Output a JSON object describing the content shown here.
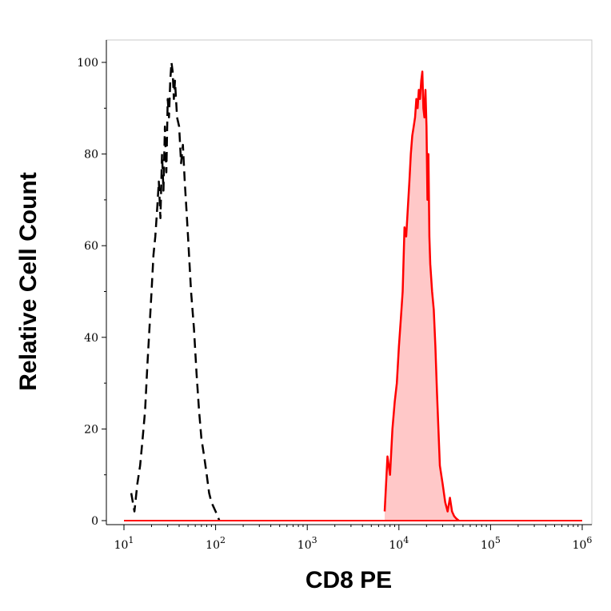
{
  "chart_data": {
    "type": "area",
    "xlabel": "CD8 PE",
    "ylabel": "Relative Cell Count",
    "x_scale": "log",
    "xlim": [
      10,
      1000000
    ],
    "ylim": [
      0,
      100
    ],
    "yticks": [
      {
        "value": 0,
        "label": "0"
      },
      {
        "value": 20,
        "label": "20"
      },
      {
        "value": 40,
        "label": "40"
      },
      {
        "value": 60,
        "label": "60"
      },
      {
        "value": 80,
        "label": "80"
      },
      {
        "value": 100,
        "label": "100"
      }
    ],
    "xticks": [
      {
        "value": 10,
        "base": "10",
        "exp": "1"
      },
      {
        "value": 100,
        "base": "10",
        "exp": "2"
      },
      {
        "value": 1000,
        "base": "10",
        "exp": "3"
      },
      {
        "value": 10000,
        "base": "10",
        "exp": "4"
      },
      {
        "value": 100000,
        "base": "10",
        "exp": "5"
      },
      {
        "value": 1000000,
        "base": "10",
        "exp": "6"
      }
    ],
    "grid": false,
    "legend": "none",
    "series": [
      {
        "style": "dashed",
        "color": "#000000",
        "fill": "none",
        "x": [
          12,
          13,
          14,
          15,
          16,
          17,
          18,
          19,
          20,
          21,
          22,
          23,
          24,
          25,
          26,
          27,
          28,
          29,
          30,
          31,
          32,
          33,
          34,
          35,
          36,
          38,
          40,
          42,
          44,
          46,
          48,
          50,
          54,
          58,
          62,
          66,
          70,
          75,
          80,
          85,
          90,
          95,
          100,
          105,
          110
        ],
        "y": [
          6,
          2,
          8,
          12,
          18,
          24,
          34,
          42,
          50,
          58,
          62,
          68,
          74,
          66,
          80,
          72,
          86,
          76,
          92,
          88,
          96,
          100,
          98,
          92,
          96,
          88,
          86,
          78,
          82,
          74,
          68,
          62,
          50,
          42,
          32,
          24,
          18,
          14,
          10,
          6,
          4,
          3,
          2,
          1,
          0
        ]
      },
      {
        "style": "solid",
        "color": "#ff0000",
        "fill": "#ffc8c8",
        "x": [
          7000,
          7500,
          8000,
          8500,
          9000,
          9500,
          10000,
          10500,
          11000,
          11500,
          12000,
          12500,
          13000,
          13500,
          14000,
          14500,
          15000,
          15500,
          16000,
          16500,
          17000,
          17500,
          18000,
          18500,
          19000,
          19500,
          20000,
          20500,
          21000,
          21500,
          22000,
          23000,
          24000,
          25000,
          26000,
          27000,
          28000,
          30000,
          32000,
          34000,
          36000,
          38000,
          40000,
          42000,
          45000
        ],
        "y": [
          2,
          14,
          10,
          20,
          26,
          30,
          38,
          44,
          50,
          64,
          62,
          68,
          74,
          80,
          84,
          86,
          88,
          92,
          90,
          94,
          92,
          96,
          98,
          90,
          88,
          94,
          86,
          70,
          80,
          62,
          56,
          50,
          46,
          38,
          28,
          20,
          12,
          8,
          4,
          2,
          5,
          2,
          1,
          0.5,
          0
        ]
      }
    ]
  }
}
